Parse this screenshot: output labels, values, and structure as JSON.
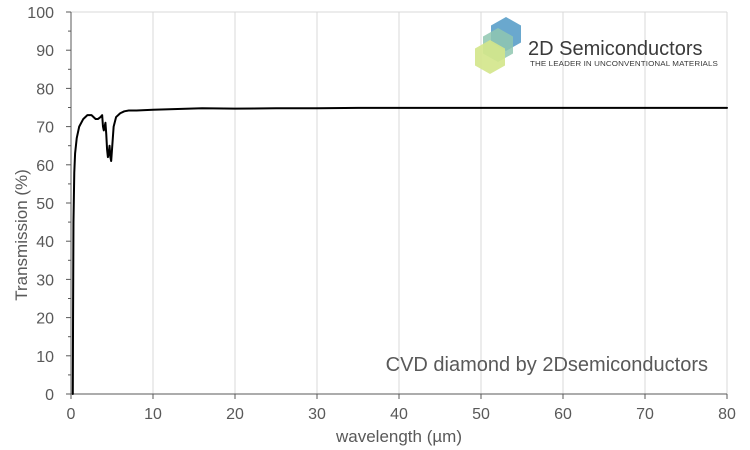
{
  "chart_data": {
    "type": "line",
    "title": "",
    "xlabel": "wavelength (µm)",
    "ylabel": "Transmission (%)",
    "xlim": [
      0,
      80
    ],
    "ylim": [
      0,
      100
    ],
    "x_ticks": [
      0,
      10,
      20,
      30,
      40,
      50,
      60,
      70,
      80
    ],
    "y_ticks": [
      0,
      10,
      20,
      30,
      40,
      50,
      60,
      70,
      80,
      90,
      100
    ],
    "grid": "vertical",
    "legend": "none",
    "annotation": "CVD diamond by 2Dsemiconductors",
    "line_color": "#000000",
    "series": [
      {
        "x": [
          0.22,
          0.25,
          0.3,
          0.4,
          0.5,
          0.7,
          1.0,
          1.5,
          2.0,
          2.5,
          3.0,
          3.3,
          3.6,
          3.8,
          3.9,
          4.0,
          4.1,
          4.2,
          4.3,
          4.4,
          4.5,
          4.6,
          4.7,
          4.8,
          4.9,
          5.0,
          5.1,
          5.2,
          5.5,
          6.0,
          6.5,
          7.0,
          8.0,
          10,
          13,
          16,
          20,
          25,
          30,
          35,
          40,
          45,
          50,
          55,
          60,
          65,
          70,
          75,
          80
        ],
        "y": [
          0,
          20,
          45,
          58,
          63,
          67,
          70,
          72,
          73,
          73,
          72,
          72,
          72.5,
          73,
          70,
          69,
          70,
          71,
          68,
          64,
          62,
          63,
          65,
          62,
          61,
          64,
          67,
          70,
          72.5,
          73.5,
          74,
          74.2,
          74.2,
          74.4,
          74.6,
          74.8,
          74.7,
          74.8,
          74.8,
          74.9,
          74.9,
          74.9,
          74.9,
          74.9,
          74.9,
          74.9,
          74.9,
          74.9,
          74.9
        ]
      }
    ]
  },
  "logo": {
    "title": "2D Semiconductors",
    "tagline": "THE LEADER IN UNCONVENTIONAL MATERIALS",
    "colors": [
      "#5a9fc9",
      "#8fc7b0",
      "#d3e58a"
    ],
    "icon": "hexagon-cluster-icon"
  },
  "colors": {
    "axis": "#595959",
    "grid": "#d9d9d9",
    "line": "#000000"
  }
}
